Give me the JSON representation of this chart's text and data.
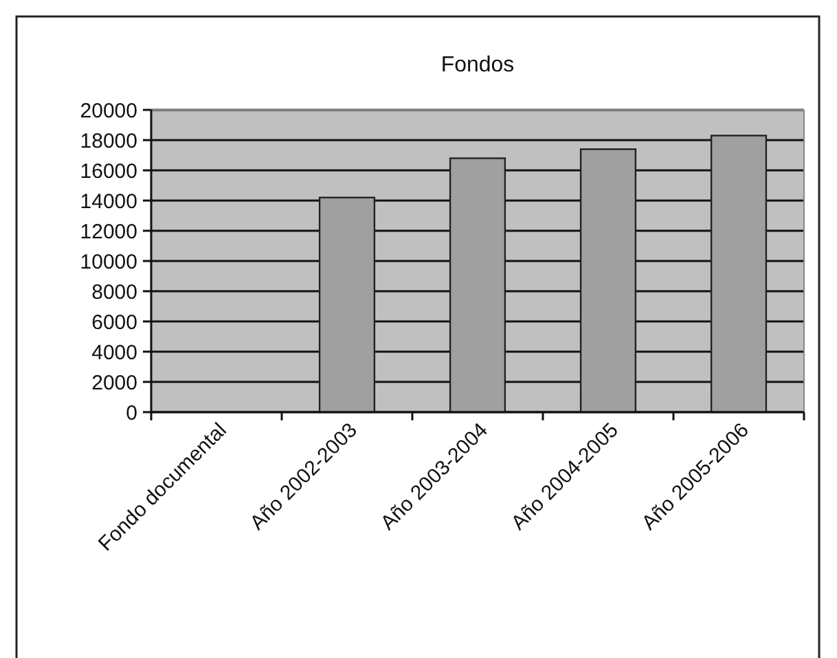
{
  "chart_data": {
    "type": "bar",
    "title": "Fondos",
    "categories": [
      "Fondo documental",
      "Año 2002-2003",
      "Año 2003-2004",
      "Año 2004-2005",
      "Año 2005-2006"
    ],
    "values": [
      null,
      14200,
      16800,
      17400,
      18300
    ],
    "color": "#a0a0a0",
    "ylim": [
      0,
      20000
    ],
    "yticks": [
      0,
      2000,
      4000,
      6000,
      8000,
      10000,
      12000,
      14000,
      16000,
      18000,
      20000
    ],
    "grid": "y"
  }
}
